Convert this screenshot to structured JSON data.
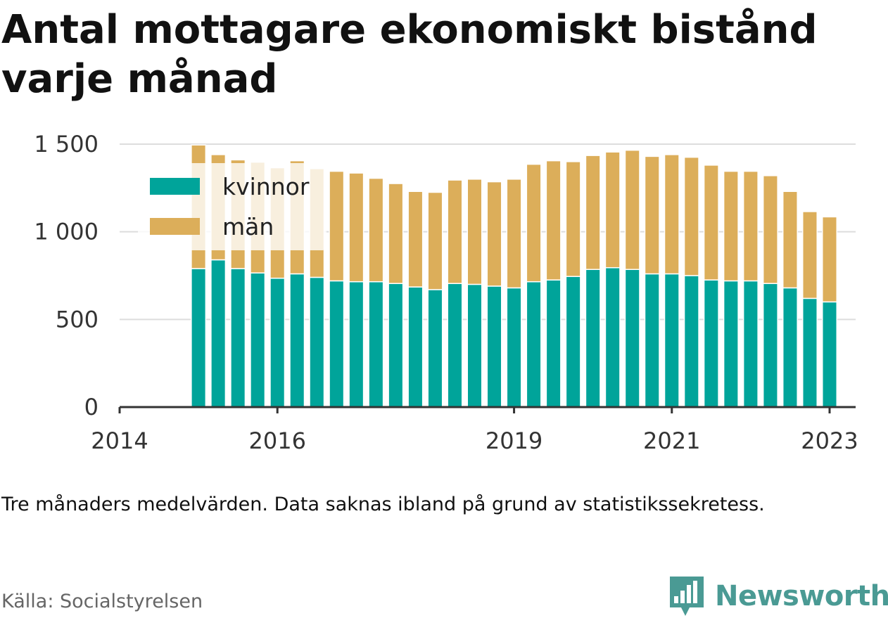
{
  "title": "Antal mottagare ekonomiskt bistånd varje månad",
  "note": "Tre månaders medelvärden. Data saknas ibland på grund av statistikssekretess.",
  "source": "Källa: Socialstyrelsen",
  "brand": {
    "name": "Newsworthy",
    "icon": "bar-chart-speech-bubble-icon",
    "color": "#4a9a94"
  },
  "colors": {
    "kvinnor": "#00a49a",
    "man": "#dcae5a",
    "grid": "#dddddd",
    "axis": "#333333",
    "text": "#333333"
  },
  "chart_data": {
    "type": "bar",
    "stacked": true,
    "ylim": [
      0,
      1600
    ],
    "yticks": [
      0,
      500,
      1000,
      1500
    ],
    "ytick_labels": [
      "0",
      "500",
      "1 000",
      "1 500"
    ],
    "xlim": [
      2014.0,
      2023.33
    ],
    "xticks": [
      2014,
      2016,
      2019,
      2021,
      2023
    ],
    "xtick_labels": [
      "2014",
      "2016",
      "2019",
      "2021",
      "2023"
    ],
    "grid": true,
    "legend_position": "top-left",
    "x": [
      2015.0,
      2015.25,
      2015.5,
      2015.75,
      2016.0,
      2016.25,
      2016.5,
      2016.75,
      2017.0,
      2017.25,
      2017.5,
      2017.75,
      2018.0,
      2018.25,
      2018.5,
      2018.75,
      2019.0,
      2019.25,
      2019.5,
      2019.75,
      2020.0,
      2020.25,
      2020.5,
      2020.75,
      2021.0,
      2021.25,
      2021.5,
      2021.75,
      2022.0,
      2022.25,
      2022.5,
      2022.75,
      2023.0
    ],
    "series": [
      {
        "name": "kvinnor",
        "values": [
          790,
          840,
          790,
          765,
          735,
          760,
          740,
          720,
          715,
          715,
          705,
          685,
          670,
          705,
          700,
          690,
          680,
          715,
          725,
          745,
          785,
          795,
          785,
          760,
          760,
          750,
          725,
          720,
          720,
          705,
          680,
          620,
          600
        ]
      },
      {
        "name": "män",
        "values": [
          705,
          600,
          620,
          630,
          630,
          645,
          620,
          625,
          620,
          590,
          570,
          545,
          555,
          590,
          600,
          595,
          620,
          670,
          680,
          655,
          650,
          660,
          680,
          670,
          680,
          675,
          655,
          625,
          625,
          615,
          550,
          495,
          485
        ]
      }
    ]
  }
}
